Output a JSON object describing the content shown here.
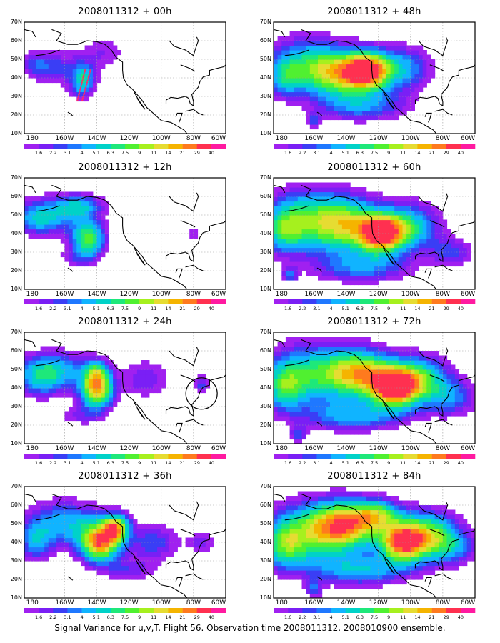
{
  "figure": {
    "caption": "Signal Variance for u,v,T. Flight 56. Observation time 2008011312. 2008010900 ensemble."
  },
  "axes": {
    "lat_labels": [
      "70N",
      "60N",
      "50N",
      "40N",
      "30N",
      "20N",
      "10N"
    ],
    "lon_labels": [
      "180",
      "160W",
      "140W",
      "120W",
      "100W",
      "80W",
      "60W"
    ]
  },
  "colorbar": {
    "levels": [
      "1.6",
      "2.2",
      "3.1",
      "4",
      "5.1",
      "6.3",
      "7.5",
      "9",
      "11",
      "14",
      "21",
      "29",
      "40"
    ],
    "colors": [
      "#a020f0",
      "#7a1ff5",
      "#3a3ef5",
      "#1f78ff",
      "#10b4ff",
      "#00d2c8",
      "#1ee87a",
      "#50f030",
      "#a6f01e",
      "#e6dc32",
      "#f5b400",
      "#ff7a1e",
      "#ff3050",
      "#ff1aa0"
    ]
  },
  "panels": [
    {
      "id": "p00h",
      "title": "2008011312 + 00h"
    },
    {
      "id": "p12h",
      "title": "2008011312 + 12h"
    },
    {
      "id": "p24h",
      "title": "2008011312 + 24h"
    },
    {
      "id": "p36h",
      "title": "2008011312 + 36h"
    },
    {
      "id": "p48h",
      "title": "2008011312 + 48h"
    },
    {
      "id": "p60h",
      "title": "2008011312 + 60h"
    },
    {
      "id": "p72h",
      "title": "2008011312 + 72h"
    },
    {
      "id": "p84h",
      "title": "2008011312 + 84h"
    }
  ]
}
